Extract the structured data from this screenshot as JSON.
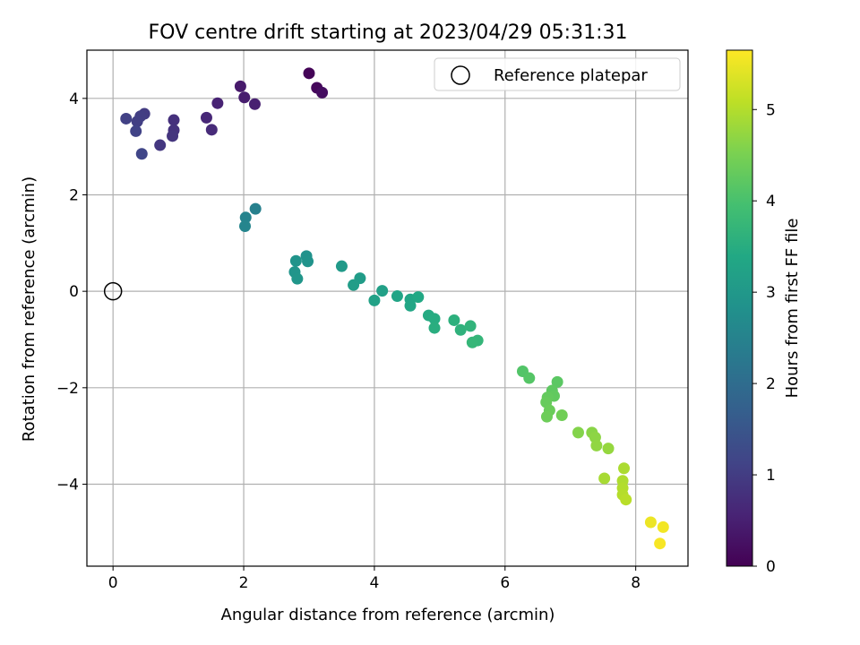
{
  "chart_data": {
    "type": "scatter",
    "title": "FOV centre drift starting at 2023/04/29 05:31:31",
    "xlabel": "Angular distance from reference (arcmin)",
    "ylabel": "Rotation from reference (arcmin)",
    "xlim": [
      -0.4,
      8.8
    ],
    "ylim": [
      -5.7,
      5.0
    ],
    "xticks": [
      0,
      2,
      4,
      6,
      8
    ],
    "yticks": [
      -4,
      -2,
      0,
      2,
      4
    ],
    "xtick_labels": [
      "0",
      "2",
      "4",
      "6",
      "8"
    ],
    "ytick_labels": [
      "−4",
      "−2",
      "0",
      "2",
      "4"
    ],
    "grid": true,
    "legend": {
      "placement": "top-right",
      "entries": [
        {
          "label": "Reference platepar",
          "marker": "open-circle"
        }
      ]
    },
    "reference_point": {
      "x": 0,
      "y": 0
    },
    "colorbar": {
      "label": "Hours from first FF file",
      "range": [
        0,
        5.65
      ],
      "colormap": "viridis",
      "ticks": [
        0,
        1,
        2,
        3,
        4,
        5
      ],
      "tick_labels": [
        "0",
        "1",
        "2",
        "3",
        "4",
        "5"
      ]
    },
    "points": [
      {
        "x": 3.0,
        "y": 4.52,
        "c": 0.05
      },
      {
        "x": 3.12,
        "y": 4.22,
        "c": 0.12
      },
      {
        "x": 3.2,
        "y": 4.12,
        "c": 0.2
      },
      {
        "x": 1.95,
        "y": 4.25,
        "c": 0.4
      },
      {
        "x": 2.01,
        "y": 4.02,
        "c": 0.45
      },
      {
        "x": 2.17,
        "y": 3.88,
        "c": 0.5
      },
      {
        "x": 1.6,
        "y": 3.9,
        "c": 0.55
      },
      {
        "x": 1.43,
        "y": 3.6,
        "c": 0.62
      },
      {
        "x": 1.51,
        "y": 3.35,
        "c": 0.68
      },
      {
        "x": 0.93,
        "y": 3.55,
        "c": 0.78
      },
      {
        "x": 0.93,
        "y": 3.34,
        "c": 0.82
      },
      {
        "x": 0.91,
        "y": 3.22,
        "c": 0.86
      },
      {
        "x": 0.72,
        "y": 3.03,
        "c": 0.9
      },
      {
        "x": 0.48,
        "y": 3.68,
        "c": 0.98
      },
      {
        "x": 0.42,
        "y": 3.63,
        "c": 1.02
      },
      {
        "x": 0.37,
        "y": 3.52,
        "c": 1.05
      },
      {
        "x": 0.2,
        "y": 3.58,
        "c": 1.08
      },
      {
        "x": 0.35,
        "y": 3.32,
        "c": 1.12
      },
      {
        "x": 0.44,
        "y": 2.85,
        "c": 1.18
      },
      {
        "x": 2.18,
        "y": 1.71,
        "c": 2.45
      },
      {
        "x": 2.03,
        "y": 1.53,
        "c": 2.5
      },
      {
        "x": 2.02,
        "y": 1.35,
        "c": 2.55
      },
      {
        "x": 2.96,
        "y": 0.73,
        "c": 2.85
      },
      {
        "x": 2.98,
        "y": 0.62,
        "c": 2.88
      },
      {
        "x": 2.8,
        "y": 0.63,
        "c": 2.9
      },
      {
        "x": 2.78,
        "y": 0.4,
        "c": 2.93
      },
      {
        "x": 2.82,
        "y": 0.26,
        "c": 2.96
      },
      {
        "x": 3.5,
        "y": 0.52,
        "c": 3.05
      },
      {
        "x": 3.78,
        "y": 0.27,
        "c": 3.1
      },
      {
        "x": 3.68,
        "y": 0.13,
        "c": 3.13
      },
      {
        "x": 4.12,
        "y": 0.01,
        "c": 3.2
      },
      {
        "x": 4.0,
        "y": -0.19,
        "c": 3.22
      },
      {
        "x": 4.35,
        "y": -0.1,
        "c": 3.28
      },
      {
        "x": 4.55,
        "y": -0.17,
        "c": 3.32
      },
      {
        "x": 4.55,
        "y": -0.3,
        "c": 3.35
      },
      {
        "x": 4.67,
        "y": -0.12,
        "c": 3.38
      },
      {
        "x": 4.83,
        "y": -0.5,
        "c": 3.45
      },
      {
        "x": 4.92,
        "y": -0.57,
        "c": 3.48
      },
      {
        "x": 4.92,
        "y": -0.76,
        "c": 3.52
      },
      {
        "x": 5.22,
        "y": -0.6,
        "c": 3.58
      },
      {
        "x": 5.32,
        "y": -0.8,
        "c": 3.62
      },
      {
        "x": 5.47,
        "y": -0.72,
        "c": 3.65
      },
      {
        "x": 5.58,
        "y": -1.02,
        "c": 3.7
      },
      {
        "x": 5.5,
        "y": -1.06,
        "c": 3.73
      },
      {
        "x": 6.27,
        "y": -1.66,
        "c": 4.1
      },
      {
        "x": 6.37,
        "y": -1.8,
        "c": 4.13
      },
      {
        "x": 6.8,
        "y": -1.88,
        "c": 4.2
      },
      {
        "x": 6.72,
        "y": -2.06,
        "c": 4.23
      },
      {
        "x": 6.75,
        "y": -2.17,
        "c": 4.26
      },
      {
        "x": 6.65,
        "y": -2.2,
        "c": 4.29
      },
      {
        "x": 6.63,
        "y": -2.3,
        "c": 4.32
      },
      {
        "x": 6.68,
        "y": -2.47,
        "c": 4.35
      },
      {
        "x": 6.64,
        "y": -2.6,
        "c": 4.38
      },
      {
        "x": 6.87,
        "y": -2.57,
        "c": 4.42
      },
      {
        "x": 7.12,
        "y": -2.93,
        "c": 4.6
      },
      {
        "x": 7.33,
        "y": -2.93,
        "c": 4.65
      },
      {
        "x": 7.38,
        "y": -3.03,
        "c": 4.68
      },
      {
        "x": 7.4,
        "y": -3.2,
        "c": 4.71
      },
      {
        "x": 7.58,
        "y": -3.26,
        "c": 4.75
      },
      {
        "x": 7.52,
        "y": -3.88,
        "c": 4.9
      },
      {
        "x": 7.82,
        "y": -3.67,
        "c": 4.93
      },
      {
        "x": 7.8,
        "y": -3.93,
        "c": 4.96
      },
      {
        "x": 7.8,
        "y": -4.08,
        "c": 4.99
      },
      {
        "x": 7.8,
        "y": -4.22,
        "c": 5.02
      },
      {
        "x": 7.85,
        "y": -4.32,
        "c": 5.05
      },
      {
        "x": 8.23,
        "y": -4.79,
        "c": 5.5
      },
      {
        "x": 8.42,
        "y": -4.89,
        "c": 5.55
      },
      {
        "x": 8.37,
        "y": -5.23,
        "c": 5.6
      }
    ]
  }
}
